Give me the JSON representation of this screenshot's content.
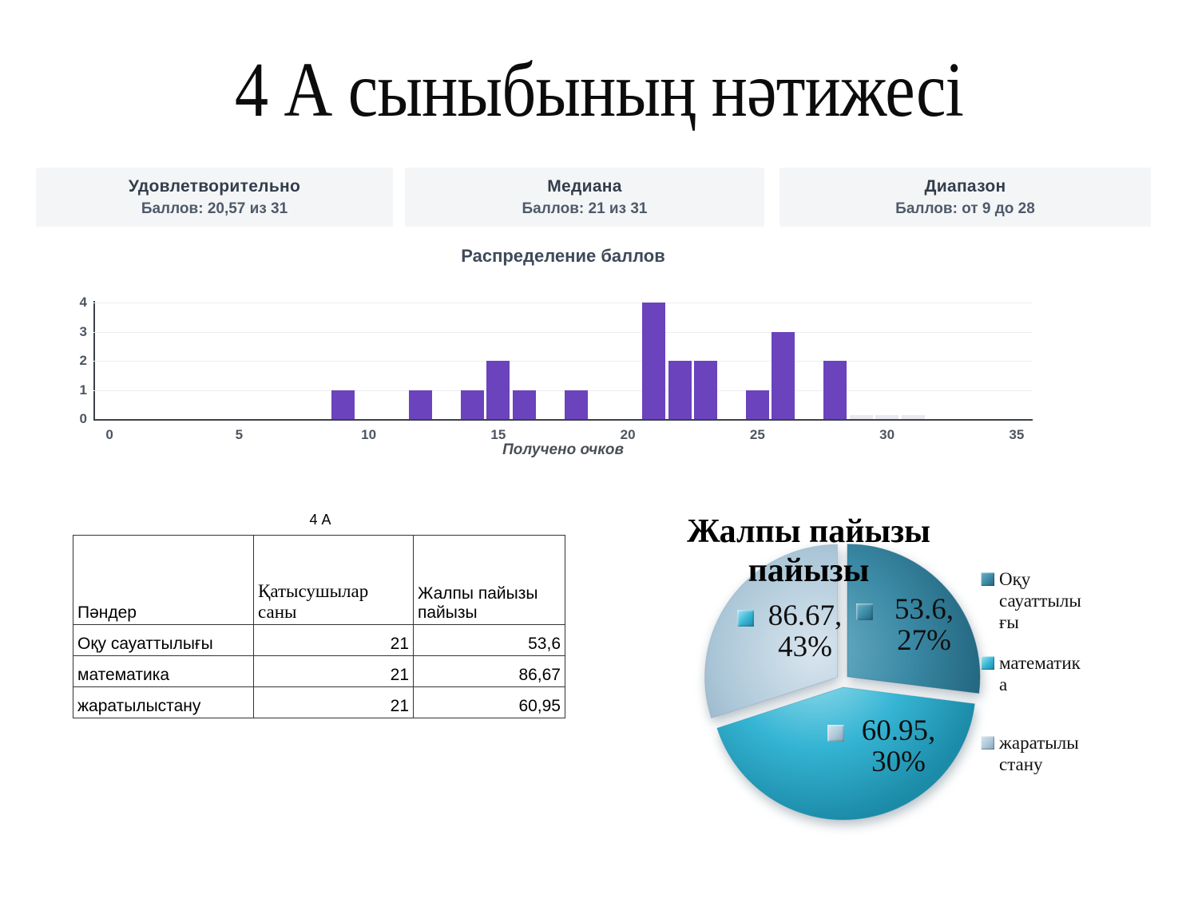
{
  "slide": {
    "title": "4 А сыныбының нәтижесі"
  },
  "stats": [
    {
      "title": "Удовлетворительно",
      "subtitle": "Баллов: 20,57 из 31"
    },
    {
      "title": "Медиана",
      "subtitle": "Баллов: 21 из 31"
    },
    {
      "title": "Диапазон",
      "subtitle": "Баллов: от 9 до 28"
    }
  ],
  "table": {
    "title": "4 А",
    "headers": [
      "Пәндер",
      "Қатысушылар саны",
      "Жалпы пайызы пайызы"
    ],
    "rows": [
      [
        "Оқу сауаттылығы",
        "21",
        "53,6"
      ],
      [
        "математика",
        "21",
        "86,67"
      ],
      [
        "жаратылыстану",
        "21",
        "60,95"
      ]
    ]
  },
  "chart_data": [
    {
      "type": "bar",
      "title": "Распределение баллов",
      "xlabel": "Получено очков",
      "x": [
        9,
        12,
        14,
        15,
        16,
        18,
        21,
        22,
        23,
        25,
        26,
        28
      ],
      "values": [
        1,
        1,
        1,
        2,
        1,
        1,
        4,
        2,
        2,
        1,
        3,
        2
      ],
      "ghost_bins": [
        29,
        30,
        31
      ],
      "xlim": [
        -0.62,
        35.62
      ],
      "ylim": [
        0,
        4
      ],
      "x_ticks": [
        0,
        5,
        10,
        15,
        20,
        25,
        30,
        35
      ],
      "y_ticks": [
        0,
        1,
        2,
        3,
        4
      ],
      "bar_color": "#6a43bd",
      "grid": true
    },
    {
      "type": "pie",
      "title": "Жалпы пайызы пайызы",
      "labels": [
        "Оқу сауаттылығы",
        "математика",
        "жаратылыстану"
      ],
      "values": [
        "53.6",
        "86.67",
        "60.95"
      ],
      "percents": [
        27,
        43,
        30
      ],
      "colors": [
        {
          "light": "#6fb0c6",
          "base": "#3b8aa6",
          "dark": "#23657e"
        },
        {
          "light": "#a8e4f0",
          "base": "#36b5d4",
          "dark": "#1b8ba8"
        },
        {
          "light": "#d9e5ee",
          "base": "#adc8d9",
          "dark": "#84a4b8"
        }
      ],
      "legend_position": "right",
      "start_angle_deg": 0,
      "direction": "clockwise"
    }
  ]
}
